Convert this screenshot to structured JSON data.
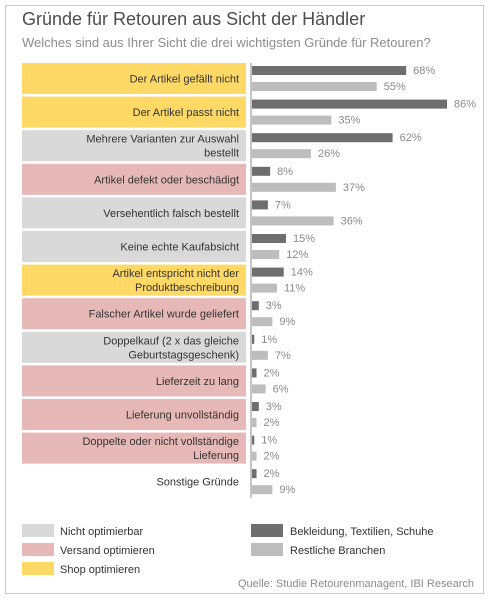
{
  "chart_data": {
    "type": "bar",
    "orientation": "horizontal",
    "title": "Gründe für Retouren aus Sicht der Händler",
    "subtitle": "Welches sind aus Ihrer Sicht die drei wichtigsten Gründe für Retouren?",
    "categories": [
      {
        "label": "Der Artikel gefällt nicht",
        "group": "shop"
      },
      {
        "label": "Der Artikel passt nicht",
        "group": "shop"
      },
      {
        "label": "Mehrere Varianten zur Auswahl bestellt",
        "group": "none"
      },
      {
        "label": "Artikel defekt oder beschädigt",
        "group": "versand"
      },
      {
        "label": "Versehentlich falsch bestellt",
        "group": "none"
      },
      {
        "label": "Keine echte Kaufabsicht",
        "group": "none"
      },
      {
        "label": "Artikel entspricht nicht der Produktbeschreibung",
        "group": "shop"
      },
      {
        "label": "Falscher Artikel wurde geliefert",
        "group": "versand"
      },
      {
        "label": "Doppelkauf (2 x das gleiche Geburtstagsgeschenk)",
        "group": "none"
      },
      {
        "label": "Lieferzeit zu lang",
        "group": "versand"
      },
      {
        "label": "Lieferung unvollständig",
        "group": "versand"
      },
      {
        "label": "Doppelte oder nicht vollständige Lieferung",
        "group": "versand"
      },
      {
        "label": "Sonstige Gründe",
        "group": "other"
      }
    ],
    "series": [
      {
        "name": "Bekleidung, Textilien, Schuhe",
        "color": "#6e6e6e",
        "values": [
          68,
          86,
          62,
          8,
          7,
          15,
          14,
          3,
          1,
          2,
          3,
          1,
          2
        ]
      },
      {
        "name": "Restliche Branchen",
        "color": "#bdbdbd",
        "values": [
          55,
          35,
          26,
          37,
          36,
          12,
          11,
          9,
          7,
          6,
          2,
          2,
          9
        ]
      }
    ],
    "value_suffix": "%",
    "xlim": [
      0,
      100
    ],
    "grid": false,
    "legend_position": "bottom",
    "group_colors": {
      "none": "#d9d9d9",
      "versand": "#e6b8b7",
      "shop": "#ffd966",
      "other": "#ffffff"
    },
    "group_legend": [
      {
        "group": "none",
        "label": "Nicht optimierbar"
      },
      {
        "group": "versand",
        "label": "Versand optimieren"
      },
      {
        "group": "shop",
        "label": "Shop optimieren"
      }
    ],
    "source": "Quelle:  Studie Retourenmanagent, IBI Research"
  }
}
